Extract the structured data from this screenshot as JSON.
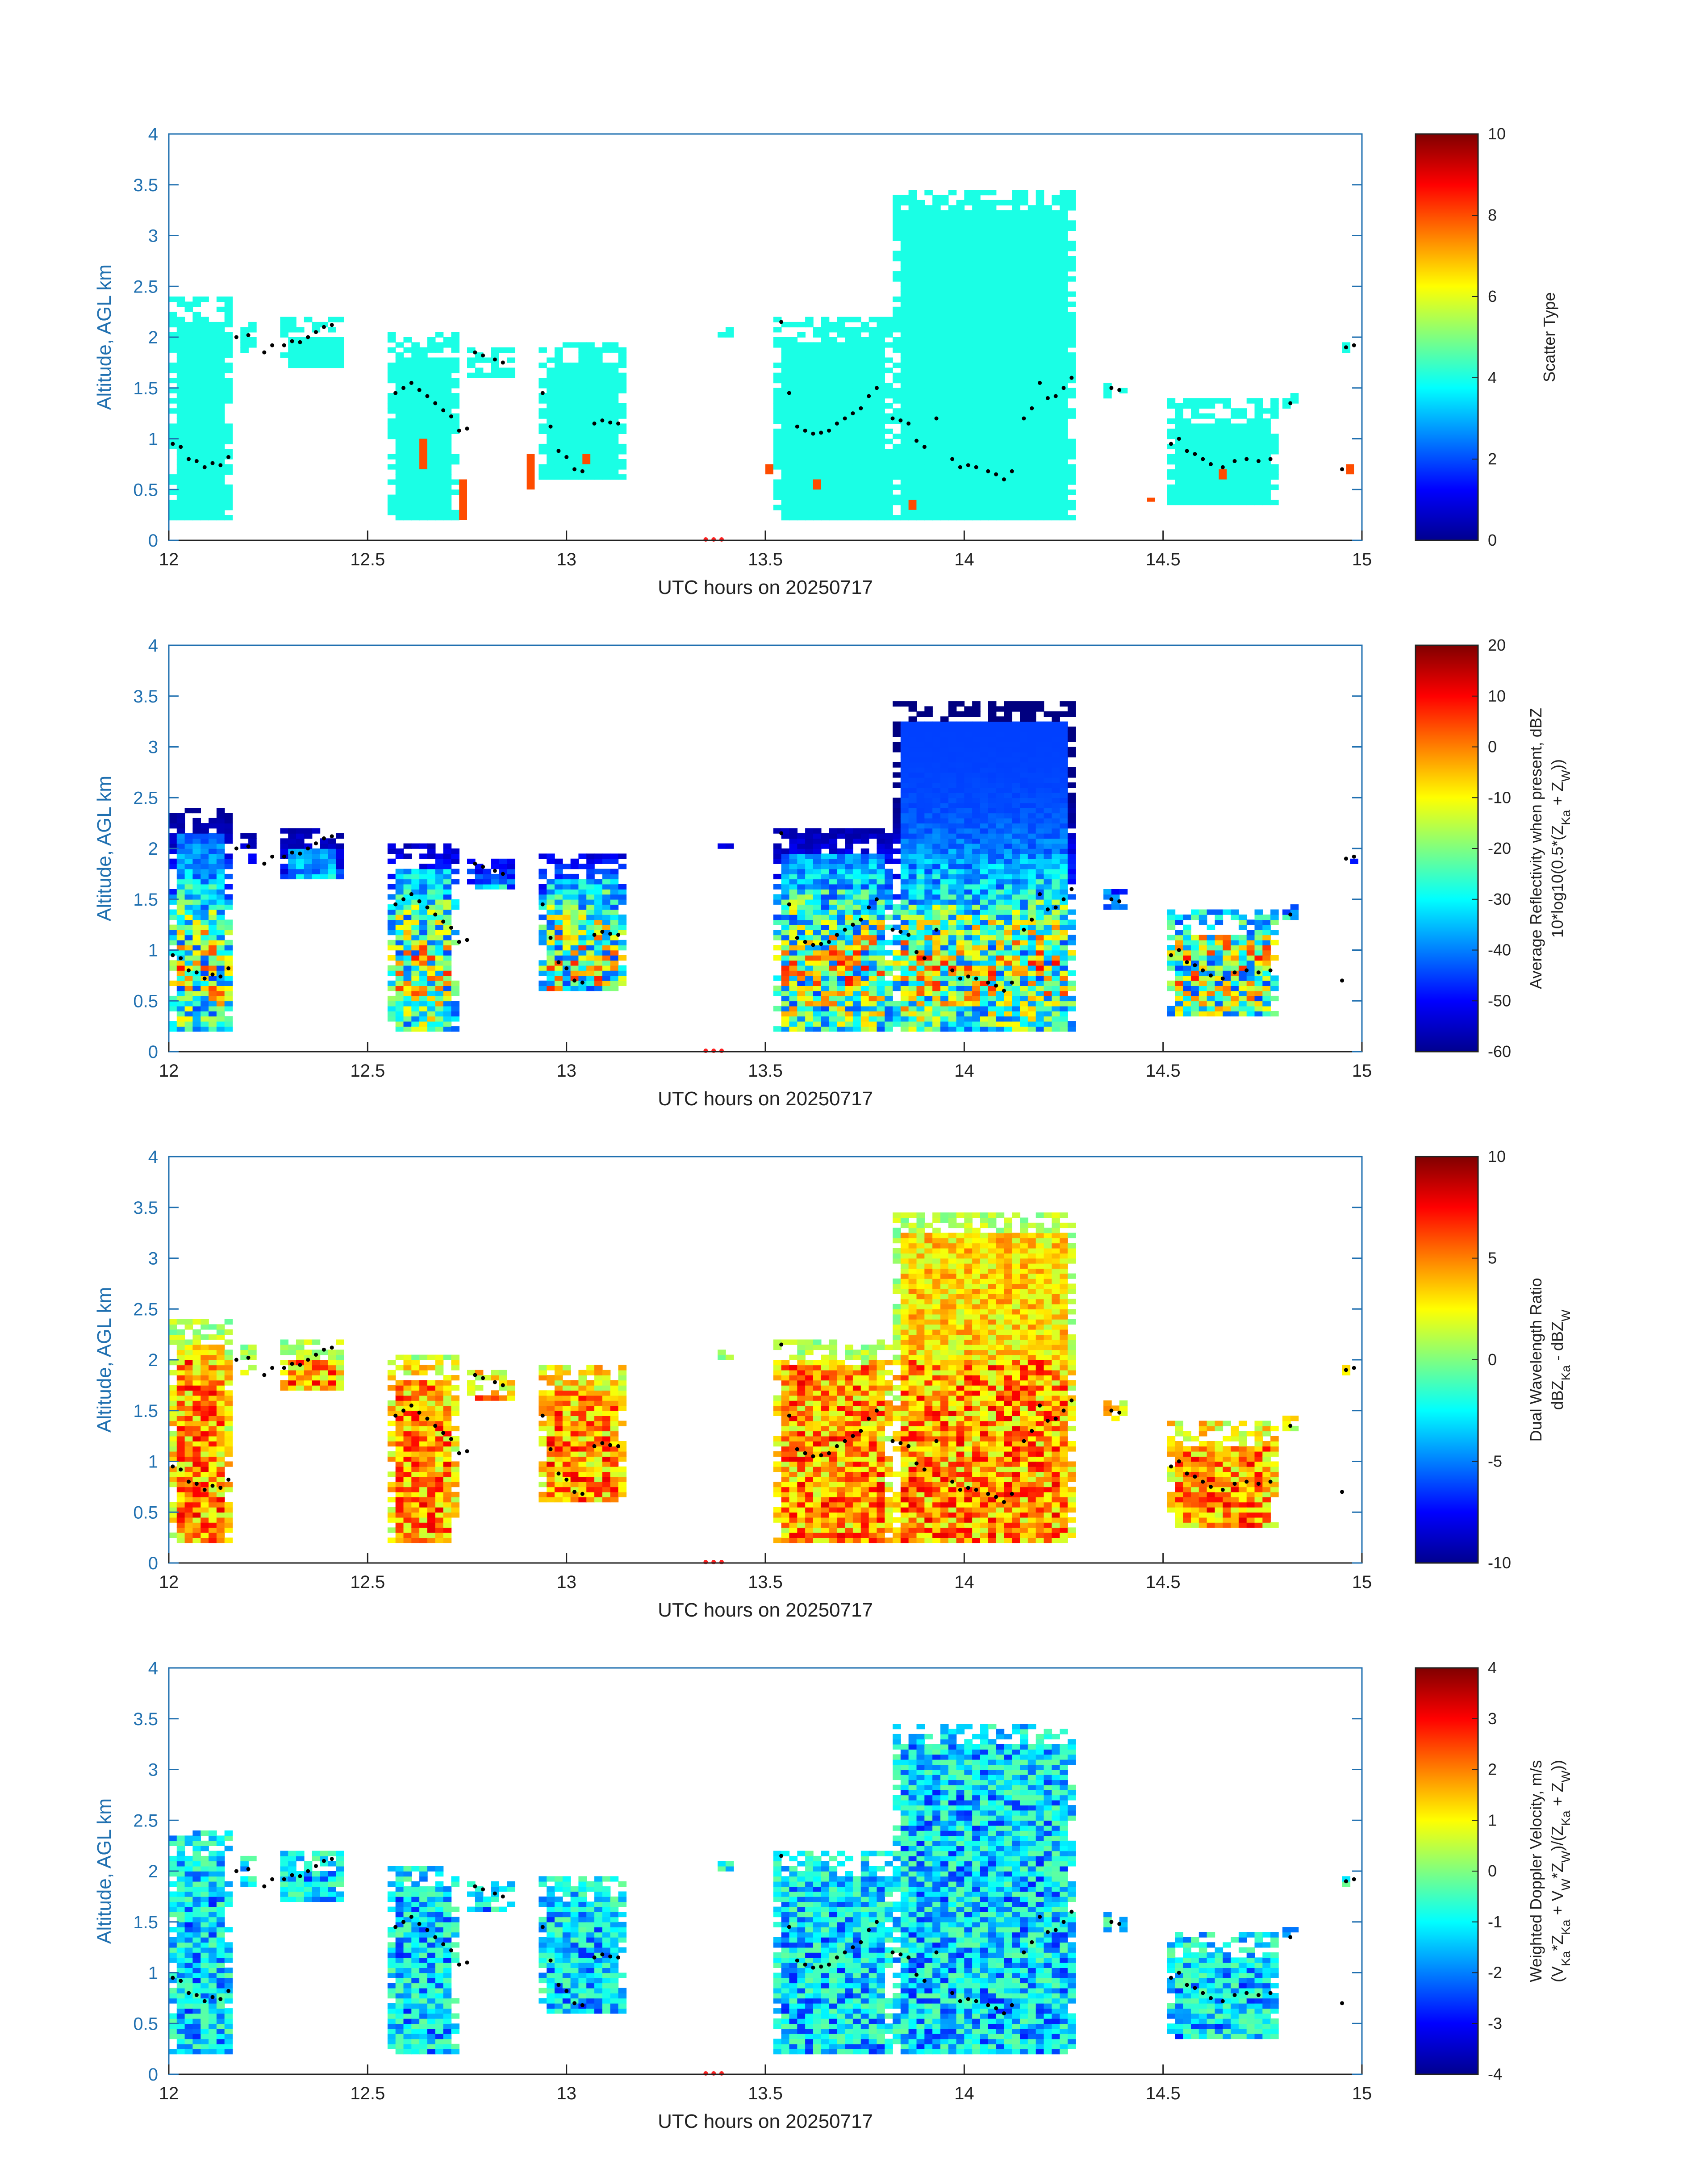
{
  "chart_data": [
    {
      "type": "heatmap",
      "title": "",
      "xlabel": "UTC hours on 20250717",
      "ylabel": "Altitude, AGL km",
      "xlim": [
        12,
        15
      ],
      "ylim": [
        0,
        4
      ],
      "xticks": [
        "12",
        "12.5",
        "13",
        "13.5",
        "14",
        "14.5",
        "15"
      ],
      "yticks": [
        "0",
        "0.5",
        "1",
        "1.5",
        "2",
        "2.5",
        "3",
        "3.5",
        "4"
      ],
      "colorbar": {
        "label_lines": [
          "Scatter Type"
        ],
        "range": [
          0,
          10
        ],
        "ticks": [
          "0",
          "2",
          "4",
          "6",
          "8",
          "10"
        ]
      },
      "dominant_value": 4,
      "regions": [
        {
          "x": [
            12.0,
            12.16
          ],
          "y": [
            0.2,
            2.4
          ]
        },
        {
          "x": [
            12.18,
            12.22
          ],
          "y": [
            1.85,
            2.15
          ]
        },
        {
          "x": [
            12.28,
            12.43
          ],
          "y": [
            1.7,
            2.2
          ]
        },
        {
          "x": [
            12.55,
            12.72
          ],
          "y": [
            0.2,
            2.05
          ]
        },
        {
          "x": [
            12.75,
            12.86
          ],
          "y": [
            1.6,
            1.9
          ]
        },
        {
          "x": [
            12.93,
            13.15
          ],
          "y": [
            0.6,
            1.95
          ]
        },
        {
          "x": [
            13.38,
            13.41
          ],
          "y": [
            2.0,
            2.1
          ]
        },
        {
          "x": [
            13.52,
            13.82
          ],
          "y": [
            0.2,
            2.2
          ]
        },
        {
          "x": [
            13.82,
            14.27
          ],
          "y": [
            0.2,
            3.45
          ]
        },
        {
          "x": [
            14.35,
            14.4
          ],
          "y": [
            1.4,
            1.6
          ]
        },
        {
          "x": [
            14.51,
            14.78
          ],
          "y": [
            0.35,
            1.4
          ]
        },
        {
          "x": [
            14.8,
            14.84
          ],
          "y": [
            1.3,
            1.45
          ]
        },
        {
          "x": [
            14.95,
            14.98
          ],
          "y": [
            1.85,
            1.95
          ]
        }
      ],
      "highlights": [
        {
          "x": 12.64,
          "y": [
            0.7,
            1.0
          ],
          "value": 8
        },
        {
          "x": 12.74,
          "y": [
            0.2,
            0.6
          ],
          "value": 8
        },
        {
          "x": 12.91,
          "y": [
            0.5,
            0.85
          ],
          "value": 8
        },
        {
          "x": 13.05,
          "y": [
            0.75,
            0.85
          ],
          "value": 8
        },
        {
          "x": 13.51,
          "y": [
            0.65,
            0.75
          ],
          "value": 8
        },
        {
          "x": 13.63,
          "y": [
            0.5,
            0.6
          ],
          "value": 8
        },
        {
          "x": 13.87,
          "y": [
            0.3,
            0.4
          ],
          "value": 8
        },
        {
          "x": 14.47,
          "y": [
            0.38,
            0.42
          ],
          "value": 8
        },
        {
          "x": 14.65,
          "y": [
            0.6,
            0.7
          ],
          "value": 8
        },
        {
          "x": 14.97,
          "y": [
            0.65,
            0.75
          ],
          "value": 8
        }
      ]
    },
    {
      "type": "heatmap",
      "title": "",
      "xlabel": "UTC hours on 20250717",
      "ylabel": "Altitude, AGL km",
      "xlim": [
        12,
        15
      ],
      "ylim": [
        0,
        4
      ],
      "xticks": [
        "12",
        "12.5",
        "13",
        "13.5",
        "14",
        "14.5",
        "15"
      ],
      "yticks": [
        "0",
        "0.5",
        "1",
        "1.5",
        "2",
        "2.5",
        "3",
        "3.5",
        "4"
      ],
      "colorbar": {
        "label_lines": [
          "Average Reflectivity when present, dBZ",
          "10*log10(0.5*(Z",
          "Ka",
          " + Z",
          "W",
          "))"
        ],
        "range": [
          -60,
          20
        ],
        "ticks": [
          "-60",
          "-50",
          "-40",
          "-30",
          "-20",
          "-10",
          "0",
          "10",
          "20"
        ]
      },
      "dominant_value": -30
    },
    {
      "type": "heatmap",
      "title": "",
      "xlabel": "UTC hours on 20250717",
      "ylabel": "Altitude, AGL km",
      "xlim": [
        12,
        15
      ],
      "ylim": [
        0,
        4
      ],
      "xticks": [
        "12",
        "12.5",
        "13",
        "13.5",
        "14",
        "14.5",
        "15"
      ],
      "yticks": [
        "0",
        "0.5",
        "1",
        "1.5",
        "2",
        "2.5",
        "3",
        "3.5",
        "4"
      ],
      "colorbar": {
        "label_lines": [
          "Dual Wavelength Ratio",
          "dBZ",
          "Ka",
          " - dBZ",
          "W"
        ],
        "range": [
          -10,
          10
        ],
        "ticks": [
          "-10",
          "-5",
          "0",
          "5",
          "10"
        ]
      },
      "dominant_value": 3
    },
    {
      "type": "heatmap",
      "title": "",
      "xlabel": "UTC hours on 20250717",
      "ylabel": "Altitude, AGL km",
      "xlim": [
        12,
        15
      ],
      "ylim": [
        0,
        4
      ],
      "xticks": [
        "12",
        "12.5",
        "13",
        "13.5",
        "14",
        "14.5",
        "15"
      ],
      "yticks": [
        "0",
        "0.5",
        "1",
        "1.5",
        "2",
        "2.5",
        "3",
        "3.5",
        "4"
      ],
      "colorbar": {
        "label_lines": [
          "Weighted Doppler Velocity, m/s",
          "(V",
          "Ka",
          "*Z",
          "Ka",
          " + V",
          "W",
          "*Z",
          "W",
          ")/(Z",
          "Ka",
          " + Z",
          "W",
          "))"
        ],
        "range": [
          -4,
          4
        ],
        "ticks": [
          "-4",
          "-3",
          "-2",
          "-1",
          "0",
          "1",
          "2",
          "3",
          "4"
        ]
      },
      "dominant_value": -0.5
    }
  ],
  "cloud_base_points": [
    [
      12.01,
      0.95
    ],
    [
      12.03,
      0.92
    ],
    [
      12.05,
      0.8
    ],
    [
      12.07,
      0.78
    ],
    [
      12.09,
      0.72
    ],
    [
      12.11,
      0.76
    ],
    [
      12.13,
      0.74
    ],
    [
      12.15,
      0.82
    ],
    [
      12.17,
      2.0
    ],
    [
      12.2,
      2.02
    ],
    [
      12.24,
      1.85
    ],
    [
      12.26,
      1.92
    ],
    [
      12.29,
      1.92
    ],
    [
      12.31,
      1.96
    ],
    [
      12.33,
      1.95
    ],
    [
      12.35,
      2.0
    ],
    [
      12.37,
      2.05
    ],
    [
      12.39,
      2.1
    ],
    [
      12.41,
      2.12
    ],
    [
      12.57,
      1.45
    ],
    [
      12.59,
      1.5
    ],
    [
      12.61,
      1.55
    ],
    [
      12.63,
      1.48
    ],
    [
      12.65,
      1.42
    ],
    [
      12.67,
      1.35
    ],
    [
      12.69,
      1.28
    ],
    [
      12.71,
      1.22
    ],
    [
      12.73,
      1.08
    ],
    [
      12.75,
      1.1
    ],
    [
      12.77,
      1.85
    ],
    [
      12.79,
      1.82
    ],
    [
      12.82,
      1.78
    ],
    [
      12.84,
      1.75
    ],
    [
      12.94,
      1.45
    ],
    [
      12.96,
      1.12
    ],
    [
      12.98,
      0.88
    ],
    [
      13.0,
      0.82
    ],
    [
      13.02,
      0.7
    ],
    [
      13.04,
      0.68
    ],
    [
      13.07,
      1.15
    ],
    [
      13.09,
      1.18
    ],
    [
      13.11,
      1.16
    ],
    [
      13.13,
      1.15
    ],
    [
      13.54,
      2.15
    ],
    [
      13.56,
      1.45
    ],
    [
      13.58,
      1.12
    ],
    [
      13.6,
      1.08
    ],
    [
      13.62,
      1.05
    ],
    [
      13.64,
      1.06
    ],
    [
      13.66,
      1.08
    ],
    [
      13.68,
      1.15
    ],
    [
      13.7,
      1.2
    ],
    [
      13.72,
      1.25
    ],
    [
      13.74,
      1.3
    ],
    [
      13.76,
      1.42
    ],
    [
      13.78,
      1.5
    ],
    [
      13.82,
      1.2
    ],
    [
      13.84,
      1.18
    ],
    [
      13.86,
      1.15
    ],
    [
      13.88,
      0.98
    ],
    [
      13.9,
      0.92
    ],
    [
      13.93,
      1.2
    ],
    [
      13.97,
      0.8
    ],
    [
      13.99,
      0.72
    ],
    [
      14.01,
      0.74
    ],
    [
      14.03,
      0.72
    ],
    [
      14.06,
      0.68
    ],
    [
      14.08,
      0.65
    ],
    [
      14.1,
      0.6
    ],
    [
      14.12,
      0.68
    ],
    [
      14.15,
      1.2
    ],
    [
      14.17,
      1.3
    ],
    [
      14.19,
      1.55
    ],
    [
      14.21,
      1.4
    ],
    [
      14.23,
      1.42
    ],
    [
      14.25,
      1.5
    ],
    [
      14.27,
      1.6
    ],
    [
      14.37,
      1.5
    ],
    [
      14.39,
      1.48
    ],
    [
      14.52,
      0.95
    ],
    [
      14.54,
      1.0
    ],
    [
      14.56,
      0.88
    ],
    [
      14.58,
      0.85
    ],
    [
      14.6,
      0.8
    ],
    [
      14.62,
      0.75
    ],
    [
      14.65,
      0.72
    ],
    [
      14.68,
      0.78
    ],
    [
      14.71,
      0.8
    ],
    [
      14.74,
      0.78
    ],
    [
      14.77,
      0.8
    ],
    [
      14.82,
      1.35
    ],
    [
      14.96,
      1.9
    ],
    [
      14.98,
      1.92
    ],
    [
      14.95,
      0.7
    ]
  ],
  "axis_markers": [
    13.35,
    13.37,
    13.39
  ]
}
